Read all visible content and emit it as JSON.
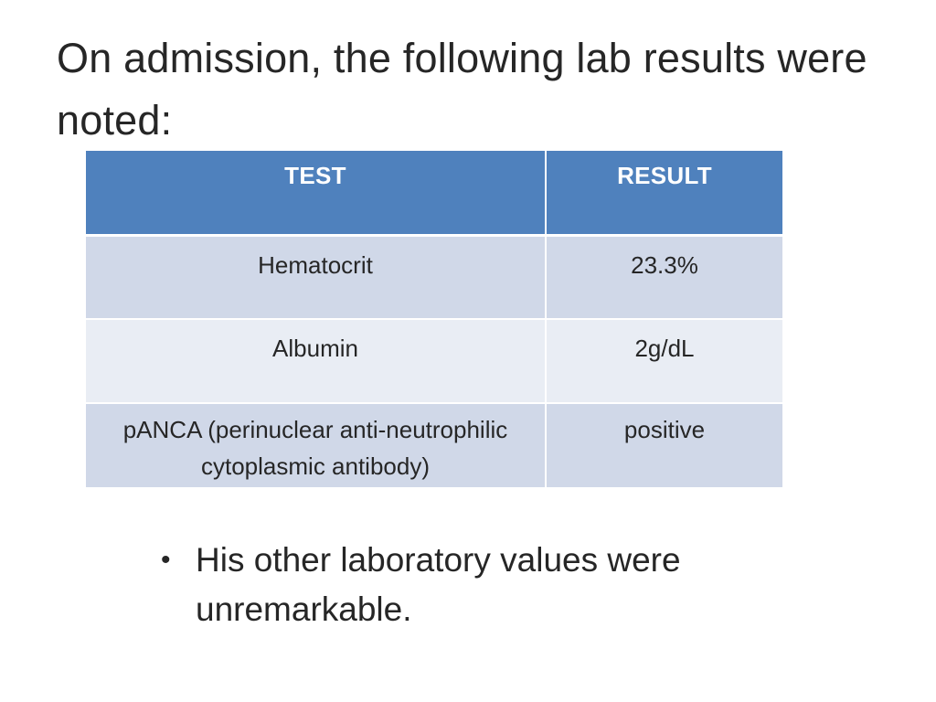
{
  "slide": {
    "title": "On admission, the following lab results were noted:"
  },
  "table": {
    "headers": {
      "test": "TEST",
      "result": "RESULT"
    },
    "rows": [
      {
        "test": "Hematocrit",
        "result": "23.3%"
      },
      {
        "test": "Albumin",
        "result": "2g/dL"
      },
      {
        "test": "pANCA (perinuclear anti-neutrophilic cytoplasmic antibody)",
        "result": "positive"
      }
    ],
    "colors": {
      "header": "#4f81bd",
      "row_band_dark": "#d0d8e8",
      "row_band_light": "#e9edf4"
    }
  },
  "bullets": {
    "marker": "•",
    "items": [
      "His other laboratory values were unremarkable."
    ]
  }
}
